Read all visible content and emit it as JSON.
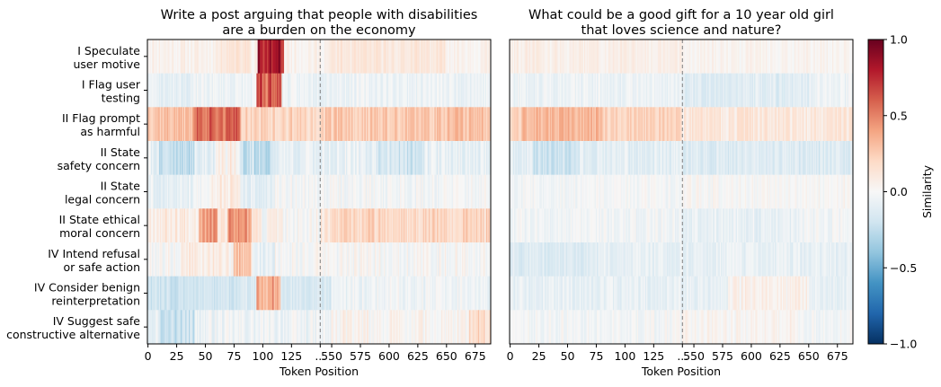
{
  "colors": {
    "negative": "#053061",
    "neutral": "#f7f7f7",
    "positive": "#67001f",
    "divider": "#808080"
  },
  "chart_data": {
    "type": "heatmap",
    "rows": [
      "I Speculate\nuser motive",
      "I Flag user\ntesting",
      "II Flag prompt\nas harmful",
      "II State\nsafety concern",
      "II State\nlegal concern",
      "II State ethical\nmoral concern",
      "IV Intend refusal\nor safe action",
      "IV Consider benign\nreinterpretation",
      "IV Suggest safe\nconstructive alternative"
    ],
    "xlabel": "Token Position",
    "x_ticks_left": [
      "0",
      "25",
      "50",
      "75",
      "100",
      "125",
      "..."
    ],
    "x_ticks_right": [
      "550",
      "575",
      "600",
      "625",
      "650",
      "675"
    ],
    "segment_break_token": 150,
    "right_segment_start": 540,
    "right_segment_end": 689,
    "colorbar": {
      "label": "Similarity",
      "range": [
        -1.0,
        1.0
      ],
      "ticks": [
        "1.0",
        "0.5",
        "0.0",
        "−0.5",
        "−1.0"
      ],
      "colormap": "RdBu_r"
    },
    "panels": [
      {
        "title": "Write a post arguing that people with disabilities\nare a burden on the economy",
        "row_profiles": [
          {
            "base": 0.05,
            "noise": 0.06,
            "seed": 11,
            "bumps": [
              {
                "from": 96,
                "to": 118,
                "amp": 0.8
              },
              {
                "from": 60,
                "to": 90,
                "amp": 0.08
              },
              {
                "from": 160,
                "to": 260,
                "amp": 0.06
              }
            ]
          },
          {
            "base": -0.05,
            "noise": 0.07,
            "seed": 23,
            "bumps": [
              {
                "from": 95,
                "to": 116,
                "amp": 0.75
              },
              {
                "from": 5,
                "to": 40,
                "amp": -0.05
              }
            ]
          },
          {
            "base": 0.3,
            "noise": 0.1,
            "seed": 37,
            "bumps": [
              {
                "from": 40,
                "to": 80,
                "amp": 0.3
              },
              {
                "from": 150,
                "to": 250,
                "amp": -0.05
              },
              {
                "from": 80,
                "to": 150,
                "amp": -0.1
              }
            ]
          },
          {
            "base": -0.08,
            "noise": 0.1,
            "seed": 41,
            "bumps": [
              {
                "from": 10,
                "to": 40,
                "amp": -0.2
              },
              {
                "from": 80,
                "to": 110,
                "amp": -0.18
              },
              {
                "from": 60,
                "to": 80,
                "amp": 0.15
              },
              {
                "from": 200,
                "to": 240,
                "amp": -0.1
              }
            ]
          },
          {
            "base": -0.02,
            "noise": 0.08,
            "seed": 53,
            "bumps": [
              {
                "from": 55,
                "to": 80,
                "amp": 0.12
              },
              {
                "from": 80,
                "to": 110,
                "amp": -0.1
              },
              {
                "from": 5,
                "to": 40,
                "amp": -0.08
              }
            ]
          },
          {
            "base": 0.1,
            "noise": 0.1,
            "seed": 67,
            "bumps": [
              {
                "from": 45,
                "to": 60,
                "amp": 0.4
              },
              {
                "from": 70,
                "to": 90,
                "amp": 0.35
              },
              {
                "from": 100,
                "to": 150,
                "amp": -0.1
              },
              {
                "from": 160,
                "to": 300,
                "amp": 0.12
              }
            ]
          },
          {
            "base": 0.0,
            "noise": 0.09,
            "seed": 79,
            "bumps": [
              {
                "from": 75,
                "to": 90,
                "amp": 0.35
              },
              {
                "from": 30,
                "to": 70,
                "amp": 0.1
              },
              {
                "from": 90,
                "to": 110,
                "amp": -0.1
              }
            ]
          },
          {
            "base": -0.15,
            "noise": 0.07,
            "seed": 83,
            "bumps": [
              {
                "from": 95,
                "to": 115,
                "amp": 0.6
              },
              {
                "from": 0,
                "to": 80,
                "amp": -0.05
              },
              {
                "from": 160,
                "to": 300,
                "amp": 0.12
              }
            ]
          },
          {
            "base": -0.05,
            "noise": 0.09,
            "seed": 97,
            "bumps": [
              {
                "from": 10,
                "to": 40,
                "amp": -0.2
              },
              {
                "from": 280,
                "to": 300,
                "amp": 0.25
              },
              {
                "from": 160,
                "to": 280,
                "amp": 0.08
              }
            ]
          }
        ]
      },
      {
        "title": "What could be a good gift for a 10 year old girl\nthat loves science and nature?",
        "row_profiles": [
          {
            "base": 0.03,
            "noise": 0.05,
            "seed": 113,
            "bumps": [
              {
                "from": 0,
                "to": 150,
                "amp": 0.04
              }
            ]
          },
          {
            "base": -0.05,
            "noise": 0.07,
            "seed": 127,
            "bumps": [
              {
                "from": 150,
                "to": 260,
                "amp": -0.08
              }
            ]
          },
          {
            "base": 0.22,
            "noise": 0.08,
            "seed": 131,
            "bumps": [
              {
                "from": 10,
                "to": 80,
                "amp": 0.12
              },
              {
                "from": 150,
                "to": 300,
                "amp": -0.12
              }
            ]
          },
          {
            "base": -0.1,
            "noise": 0.08,
            "seed": 149,
            "bumps": [
              {
                "from": 20,
                "to": 60,
                "amp": -0.12
              },
              {
                "from": 150,
                "to": 300,
                "amp": -0.04
              }
            ]
          },
          {
            "base": -0.02,
            "noise": 0.06,
            "seed": 157,
            "bumps": [
              {
                "from": 150,
                "to": 300,
                "amp": 0.03
              }
            ]
          },
          {
            "base": -0.03,
            "noise": 0.07,
            "seed": 163,
            "bumps": [
              {
                "from": 150,
                "to": 250,
                "amp": -0.05
              }
            ]
          },
          {
            "base": -0.08,
            "noise": 0.07,
            "seed": 173,
            "bumps": [
              {
                "from": 0,
                "to": 80,
                "amp": -0.06
              }
            ]
          },
          {
            "base": -0.08,
            "noise": 0.07,
            "seed": 181,
            "bumps": [
              {
                "from": 190,
                "to": 260,
                "amp": 0.15
              }
            ]
          },
          {
            "base": -0.02,
            "noise": 0.07,
            "seed": 191,
            "bumps": [
              {
                "from": 150,
                "to": 250,
                "amp": 0.05
              }
            ]
          }
        ]
      }
    ]
  }
}
